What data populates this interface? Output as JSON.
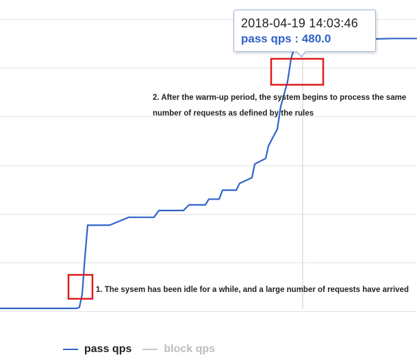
{
  "chart_data": {
    "type": "line",
    "y_scale": "linear",
    "grid": true,
    "series": [
      {
        "name": "pass qps",
        "color": "#2f62c9",
        "x": [
          0,
          112,
          116,
          120,
          124,
          128,
          160,
          180,
          188,
          225,
          232,
          268,
          276,
          300,
          305,
          320,
          325,
          345,
          350,
          368,
          372,
          388,
          392,
          405,
          410,
          420,
          425,
          432,
          437,
          442,
          455,
          475,
          510,
          540,
          575,
          609
        ],
        "values": [
          5,
          5,
          7,
          30,
          95,
          152,
          152,
          162,
          166,
          166,
          178,
          178,
          188,
          188,
          198,
          198,
          214,
          214,
          226,
          236,
          260,
          270,
          292,
          322,
          362,
          406,
          446,
          474,
          480,
          480,
          482,
          479,
          482,
          481,
          482,
          482
        ]
      },
      {
        "name": "block qps",
        "color": "#c8c8c8",
        "x": [],
        "values": []
      }
    ],
    "xlim": [
      0,
      609
    ],
    "ylim": [
      -30,
      550
    ],
    "legend_position": "bottom-left",
    "highlight_x": 442,
    "highlight_value": 480.0,
    "tooltip": {
      "time": "2018-04-19 14:03:46",
      "value_text": "pass qps : 480.0"
    },
    "annotations": [
      "1. The sysem has been idle for a while, and a large number of requests have arrived",
      "2. After the warm-up period, the system begins to process the same number of requests as defined by the rules"
    ],
    "highlight_box_color": "#e0191a"
  },
  "legend": {
    "pass_label": "pass qps",
    "block_label": "block qps",
    "pass_color": "#2f62c9",
    "block_color": "#c8c8c8"
  }
}
